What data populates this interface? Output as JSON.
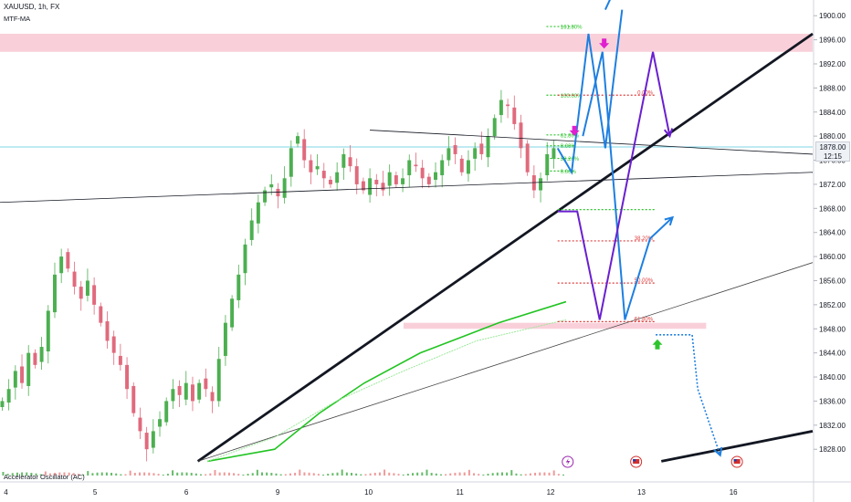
{
  "header": {
    "symbol_line": "XAUUSD, 1h, FX",
    "indicator": "MTF-MA",
    "oscillator": "Accelerator Oscillator (AC)"
  },
  "price_tag": {
    "price": "1878.00",
    "countdown": "12:15"
  },
  "colors": {
    "up": "#4caf50",
    "down": "#e06a7d",
    "zone": "#f8c8d4",
    "blue": "#1e7fe0",
    "purple": "#6a1fd0",
    "green_ma": "#22c422",
    "fib_green": "#2ec42e",
    "fib_red": "#e03c3c",
    "magenta": "#e020d0",
    "horizontal": "#7fd4e6"
  },
  "chart_data": {
    "type": "candlestick",
    "symbol": "XAUUSD",
    "timeframe": "1h",
    "ylim": [
      1825,
      1902
    ],
    "y_ticks": [
      1900,
      1896,
      1892,
      1888,
      1884,
      1880,
      1876,
      1872,
      1868,
      1864,
      1860,
      1856,
      1852,
      1848,
      1844,
      1840,
      1836,
      1832,
      1828
    ],
    "y_tick_labels": [
      "1900.00",
      "1896.00",
      "1892.00",
      "1888.00",
      "1884.00",
      "1880.00",
      "1876.00",
      "1872.00",
      "1868.00",
      "1864.00",
      "1860.00",
      "1856.00",
      "1852.00",
      "1848.00",
      "1844.00",
      "1840.00",
      "1836.00",
      "1832.00",
      "1828.00"
    ],
    "x_ticks": [
      "4",
      "5",
      "6",
      "9",
      "10",
      "11",
      "12",
      "13",
      "16"
    ],
    "x_tick_pos": [
      0.4,
      16.3,
      32.6,
      48.9,
      65.1,
      81.4,
      97.6,
      113.8,
      130.2
    ],
    "close_path": [
      1836,
      1838,
      1841,
      1839,
      1844,
      1842,
      1845,
      1851,
      1857,
      1860,
      1858,
      1855,
      1853,
      1856,
      1852,
      1849,
      1846,
      1844,
      1842,
      1838,
      1834,
      1831,
      1828,
      1831,
      1833,
      1836,
      1838,
      1837,
      1839,
      1836,
      1839,
      1838,
      1836,
      1843,
      1849,
      1853,
      1857,
      1862,
      1866,
      1869,
      1871,
      1872,
      1870,
      1873,
      1878,
      1880,
      1876,
      1874,
      1875,
      1873,
      1872,
      1874,
      1877,
      1875,
      1872,
      1871,
      1873,
      1872,
      1871,
      1874,
      1872,
      1873,
      1876,
      1875,
      1873,
      1872,
      1874,
      1876,
      1878,
      1877,
      1874,
      1876,
      1878,
      1877,
      1880,
      1883,
      1886,
      1885,
      1882,
      1878,
      1874,
      1871,
      1873,
      1877,
      1878
    ],
    "ma_main": [
      [
        37,
        1826
      ],
      [
        49,
        1828
      ],
      [
        57,
        1834
      ],
      [
        65,
        1839
      ],
      [
        75,
        1844
      ],
      [
        89,
        1849
      ],
      [
        101,
        1852.5
      ]
    ],
    "ma_light": [
      [
        37,
        1826
      ],
      [
        49,
        1830
      ],
      [
        60,
        1836
      ],
      [
        72,
        1841
      ],
      [
        85,
        1846
      ],
      [
        101,
        1849.5
      ]
    ],
    "trend_lines": [
      {
        "name": "main-uptrend",
        "from": [
          35.3,
          1826
        ],
        "to": [
          145,
          1897
        ]
      },
      {
        "name": "lower-uptrend",
        "from": [
          35.3,
          1826
        ],
        "to": [
          145,
          1859
        ]
      },
      {
        "name": "triangle-upper",
        "from": [
          66,
          1881
        ],
        "to": [
          145,
          1877
        ]
      },
      {
        "name": "triangle-lower",
        "from": [
          0,
          1869
        ],
        "to": [
          145,
          1874
        ]
      },
      {
        "name": "bottom-right-line",
        "from": [
          118,
          1826
        ],
        "to": [
          145,
          1831
        ]
      }
    ],
    "horizontal_line": 1878.2,
    "zones": [
      {
        "from_x": 0,
        "to_x": 145,
        "y_low": 1894,
        "y_high": 1897
      },
      {
        "from_x": 72,
        "to_x": 126,
        "y_low": 1848,
        "y_high": 1849
      }
    ],
    "fib_upper": {
      "from_x": 97.5,
      "to_x": 102.5,
      "from_x_label": 100,
      "levels": [
        {
          "price": 1898.2,
          "label": "161.80%",
          "color": "green"
        },
        {
          "price": 1886.8,
          "label": "100.00%",
          "color": "green"
        },
        {
          "price": 1880.2,
          "label": "61.80%",
          "color": "green"
        },
        {
          "price": 1878.4,
          "label": "0.00%",
          "color": "green"
        },
        {
          "price": 1876.3,
          "label": "38.20%",
          "color": "green"
        },
        {
          "price": 1874.2,
          "label": "0.00%",
          "color": "green"
        }
      ]
    },
    "fib_lower": {
      "from_x": 99.5,
      "to_x": 117,
      "levels": [
        {
          "price": 1886.8,
          "label": "0.00%",
          "color": "red"
        },
        {
          "price": 1867.8,
          "label": "",
          "color": "green"
        },
        {
          "price": 1862.6,
          "label": "38.20%",
          "color": "red"
        },
        {
          "price": 1855.6,
          "label": "50.00%",
          "color": "red"
        },
        {
          "price": 1849.2,
          "label": "61.80%",
          "color": "red"
        }
      ]
    },
    "projections": {
      "blue_up": [
        [
          99.5,
          1878
        ],
        [
          102,
          1874
        ],
        [
          105,
          1897
        ],
        [
          108,
          1878
        ],
        [
          111,
          1901
        ]
      ],
      "blue_top": [
        [
          108,
          1901
        ],
        [
          112,
          1909
        ]
      ],
      "blue_main": [
        [
          104,
          1880
        ],
        [
          107.5,
          1894
        ],
        [
          111.5,
          1849.5
        ],
        [
          116,
          1863
        ],
        [
          120,
          1866.5
        ]
      ],
      "purple": [
        [
          99.5,
          1867.5
        ],
        [
          103,
          1867.5
        ],
        [
          107,
          1849.5
        ],
        [
          112,
          1873
        ],
        [
          116.5,
          1894
        ],
        [
          119.5,
          1880
        ]
      ],
      "blue_dotted": [
        [
          117,
          1847
        ],
        [
          123.5,
          1847
        ],
        [
          124.5,
          1838
        ],
        [
          128.5,
          1827
        ]
      ]
    },
    "markers": [
      {
        "type": "arrow-down",
        "x": 107.8,
        "price": 1895.3,
        "color": "magenta"
      },
      {
        "type": "arrow-down",
        "x": 102.5,
        "price": 1880.8,
        "color": "magenta"
      },
      {
        "type": "arrow-up",
        "x": 117.3,
        "price": 1845.5,
        "color": "green"
      }
    ],
    "events": [
      {
        "type": "lightning",
        "x": 101.3
      },
      {
        "type": "flag-us",
        "x": 113.5
      },
      {
        "type": "flag-us",
        "x": 131.5
      }
    ]
  }
}
